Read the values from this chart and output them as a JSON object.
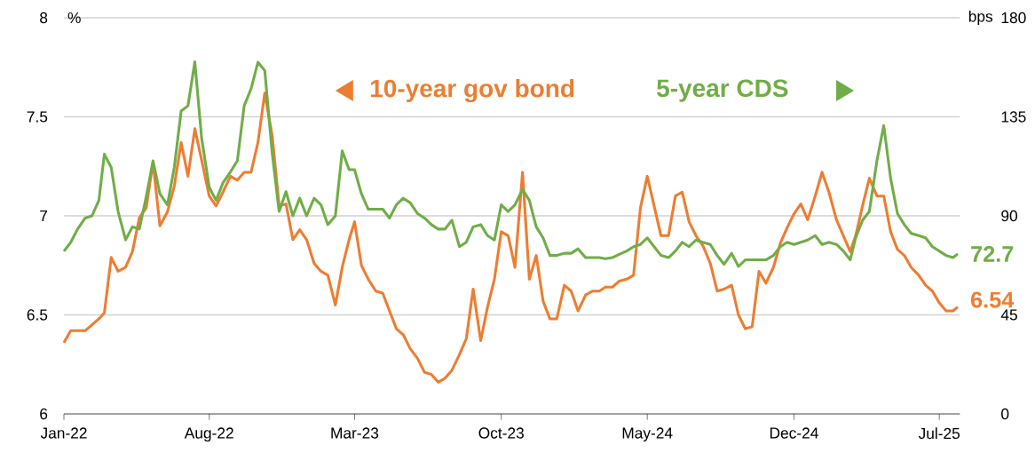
{
  "chart_data": {
    "type": "line",
    "ylabel": "%",
    "y2label": "bps",
    "x": [
      "2022-01-01",
      "2022-01-11",
      "2022-01-21",
      "2022-02-01",
      "2022-02-11",
      "2022-02-21",
      "2022-03-01",
      "2022-03-11",
      "2022-03-21",
      "2022-04-01",
      "2022-04-11",
      "2022-04-21",
      "2022-05-01",
      "2022-05-11",
      "2022-05-21",
      "2022-06-01",
      "2022-06-11",
      "2022-06-21",
      "2022-07-01",
      "2022-07-11",
      "2022-07-21",
      "2022-08-01",
      "2022-08-11",
      "2022-08-21",
      "2022-09-01",
      "2022-09-11",
      "2022-09-21",
      "2022-10-01",
      "2022-10-11",
      "2022-10-21",
      "2022-11-01",
      "2022-11-11",
      "2022-11-21",
      "2022-12-01",
      "2022-12-11",
      "2022-12-21",
      "2023-01-01",
      "2023-01-11",
      "2023-01-21",
      "2023-02-01",
      "2023-02-11",
      "2023-02-21",
      "2023-03-01",
      "2023-03-11",
      "2023-03-21",
      "2023-04-01",
      "2023-04-11",
      "2023-04-21",
      "2023-05-01",
      "2023-05-11",
      "2023-05-21",
      "2023-06-01",
      "2023-06-11",
      "2023-06-21",
      "2023-07-01",
      "2023-07-11",
      "2023-07-21",
      "2023-08-01",
      "2023-08-11",
      "2023-08-21",
      "2023-09-01",
      "2023-09-11",
      "2023-09-21",
      "2023-10-01",
      "2023-10-11",
      "2023-10-21",
      "2023-11-01",
      "2023-11-11",
      "2023-11-21",
      "2023-12-01",
      "2023-12-11",
      "2023-12-21",
      "2024-01-01",
      "2024-01-11",
      "2024-01-21",
      "2024-02-01",
      "2024-02-11",
      "2024-02-21",
      "2024-03-01",
      "2024-03-11",
      "2024-03-21",
      "2024-04-01",
      "2024-04-11",
      "2024-04-21",
      "2024-05-01",
      "2024-05-11",
      "2024-05-21",
      "2024-06-01",
      "2024-06-11",
      "2024-06-21",
      "2024-07-01",
      "2024-07-11",
      "2024-07-21",
      "2024-08-01",
      "2024-08-11",
      "2024-08-21",
      "2024-09-01",
      "2024-09-11",
      "2024-09-21",
      "2024-10-01",
      "2024-10-11",
      "2024-10-21",
      "2024-11-01",
      "2024-11-11",
      "2024-11-21",
      "2024-12-01",
      "2024-12-11",
      "2024-12-21",
      "2025-01-01",
      "2025-01-11",
      "2025-01-21",
      "2025-02-01",
      "2025-02-11",
      "2025-02-21",
      "2025-03-01",
      "2025-03-11",
      "2025-03-21",
      "2025-04-01",
      "2025-04-11",
      "2025-04-21",
      "2025-05-01",
      "2025-05-11",
      "2025-05-21",
      "2025-06-01",
      "2025-06-11",
      "2025-06-21",
      "2025-07-01",
      "2025-07-11",
      "2025-07-21",
      "2025-07-28"
    ],
    "series": [
      {
        "name": "10-year gov bond",
        "color": "#ed7d31",
        "values": [
          6.36,
          6.42,
          6.42,
          6.42,
          6.45,
          6.48,
          6.51,
          6.79,
          6.72,
          6.74,
          6.82,
          6.99,
          7.04,
          7.27,
          6.95,
          7.02,
          7.15,
          7.37,
          7.2,
          7.44,
          7.28,
          7.1,
          7.05,
          7.12,
          7.2,
          7.18,
          7.22,
          7.22,
          7.37,
          7.62,
          7.4,
          7.05,
          7.06,
          6.88,
          6.93,
          6.88,
          6.76,
          6.72,
          6.7,
          6.55,
          6.74,
          6.88,
          6.97,
          6.75,
          6.68,
          6.62,
          6.61,
          6.52,
          6.43,
          6.4,
          6.33,
          6.28,
          6.21,
          6.2,
          6.16,
          6.18,
          6.22,
          6.3,
          6.38,
          6.63,
          6.37,
          6.54,
          6.68,
          6.92,
          6.9,
          6.74,
          7.22,
          6.68,
          6.8,
          6.57,
          6.48,
          6.48,
          6.65,
          6.62,
          6.52,
          6.6,
          6.62,
          6.62,
          6.64,
          6.64,
          6.67,
          6.68,
          6.7,
          7.04,
          7.2,
          7.05,
          6.9,
          6.9,
          7.1,
          7.12,
          6.97,
          6.9,
          6.85,
          6.76,
          6.62,
          6.63,
          6.65,
          6.5,
          6.43,
          6.44,
          6.72,
          6.66,
          6.74,
          6.86,
          6.94,
          7.01,
          7.06,
          6.98,
          7.1,
          7.22,
          7.12,
          6.98,
          6.9,
          6.82,
          6.9,
          7.05,
          7.19,
          7.1,
          7.1,
          6.92,
          6.83,
          6.8,
          6.74,
          6.7,
          6.65,
          6.62,
          6.56,
          6.52,
          6.52,
          6.54
        ],
        "value_labels": [
          null,
          null,
          null,
          null,
          null,
          null,
          null,
          null,
          null,
          null,
          null,
          null,
          null,
          null,
          null,
          null,
          null,
          null,
          null,
          null,
          null,
          null,
          null,
          null,
          null,
          null,
          null,
          null,
          null,
          null,
          null,
          null,
          null,
          null,
          null,
          null,
          null,
          null,
          null,
          null,
          null,
          null,
          null,
          null,
          null,
          null,
          null,
          null,
          null,
          null,
          null,
          null,
          null,
          null,
          null,
          null,
          null,
          null,
          null,
          null,
          null,
          null,
          null,
          null,
          null,
          null,
          null,
          null,
          null,
          null,
          null,
          null,
          null,
          null,
          null,
          null,
          null,
          null,
          null,
          null,
          null,
          null,
          null,
          null,
          null,
          null,
          null,
          null,
          null,
          null,
          null,
          null,
          null,
          null,
          null,
          null,
          null,
          null,
          null,
          null,
          null,
          null,
          null,
          null,
          null,
          null,
          null,
          null,
          null,
          null,
          null,
          null,
          null,
          null,
          null,
          null,
          null,
          null,
          null,
          null,
          null,
          null,
          null,
          null,
          null,
          null,
          null,
          null,
          null,
          "6.54"
        ]
      },
      {
        "name": "5-year CDS",
        "color": "#70ad47",
        "axis": "y2",
        "values": [
          73.9,
          78,
          84,
          89,
          90,
          97,
          118,
          112,
          92,
          79.1,
          85,
          84,
          98.5,
          115,
          100,
          95,
          112,
          137.6,
          140,
          160,
          125,
          103,
          97,
          105,
          110,
          115,
          140,
          147.7,
          159.8,
          156,
          118,
          92,
          101,
          90,
          98,
          90,
          98,
          95,
          86,
          90,
          119.5,
          111,
          111,
          100,
          93,
          93,
          93,
          89,
          95,
          98,
          96,
          91,
          89,
          86,
          84,
          84,
          88,
          76,
          78,
          85,
          86,
          81,
          79,
          95,
          92,
          95,
          102,
          97,
          85,
          80,
          72,
          72,
          73,
          73,
          75,
          71,
          71,
          71,
          70.5,
          71,
          72.5,
          74,
          76,
          77,
          80,
          76,
          72,
          71,
          74,
          78,
          76,
          79,
          78,
          77,
          72,
          68,
          73,
          67,
          70,
          70,
          70,
          70,
          72,
          76,
          78,
          77,
          78,
          79,
          81,
          77,
          78,
          77,
          74,
          70,
          80,
          88,
          92,
          115,
          131,
          107,
          91,
          86,
          82,
          81,
          80,
          76,
          74,
          72,
          71,
          72.7
        ],
        "value_labels": [
          null,
          null,
          null,
          null,
          null,
          null,
          null,
          null,
          null,
          null,
          null,
          null,
          null,
          null,
          null,
          null,
          null,
          null,
          null,
          null,
          null,
          null,
          null,
          null,
          null,
          null,
          null,
          null,
          null,
          null,
          null,
          null,
          null,
          null,
          null,
          null,
          null,
          null,
          null,
          null,
          null,
          null,
          null,
          null,
          null,
          null,
          null,
          null,
          null,
          null,
          null,
          null,
          null,
          null,
          null,
          null,
          null,
          null,
          null,
          null,
          null,
          null,
          null,
          null,
          null,
          null,
          null,
          null,
          null,
          null,
          null,
          null,
          null,
          null,
          null,
          null,
          null,
          null,
          null,
          null,
          null,
          null,
          null,
          null,
          null,
          null,
          null,
          null,
          null,
          null,
          null,
          null,
          null,
          null,
          null,
          null,
          null,
          null,
          null,
          null,
          null,
          null,
          null,
          null,
          null,
          null,
          null,
          null,
          null,
          null,
          null,
          null,
          null,
          null,
          null,
          null,
          null,
          null,
          null,
          null,
          null,
          null,
          null,
          null,
          null,
          null,
          null,
          null,
          null,
          "72.7"
        ]
      }
    ],
    "xlim": [
      "2022-01-01",
      "2025-07-31"
    ],
    "xticks": [
      {
        "value": "2022-01-01",
        "label": "Jan-22"
      },
      {
        "value": "2022-08-01",
        "label": "Aug-22"
      },
      {
        "value": "2023-03-01",
        "label": "Mar-23"
      },
      {
        "value": "2023-10-01",
        "label": "Oct-23"
      },
      {
        "value": "2024-05-01",
        "label": "May-24"
      },
      {
        "value": "2024-12-01",
        "label": "Dec-24"
      },
      {
        "value": "2025-07-01",
        "label": "Jul-25"
      }
    ],
    "ylim": [
      6,
      8
    ],
    "yticks": [
      6,
      6.5,
      7,
      7.5,
      8
    ],
    "y2lim": [
      0,
      180
    ],
    "y2ticks": [
      0,
      45,
      90,
      135,
      180
    ],
    "grid": "y",
    "marker": "none",
    "line_style": "solid",
    "legend": "top"
  }
}
